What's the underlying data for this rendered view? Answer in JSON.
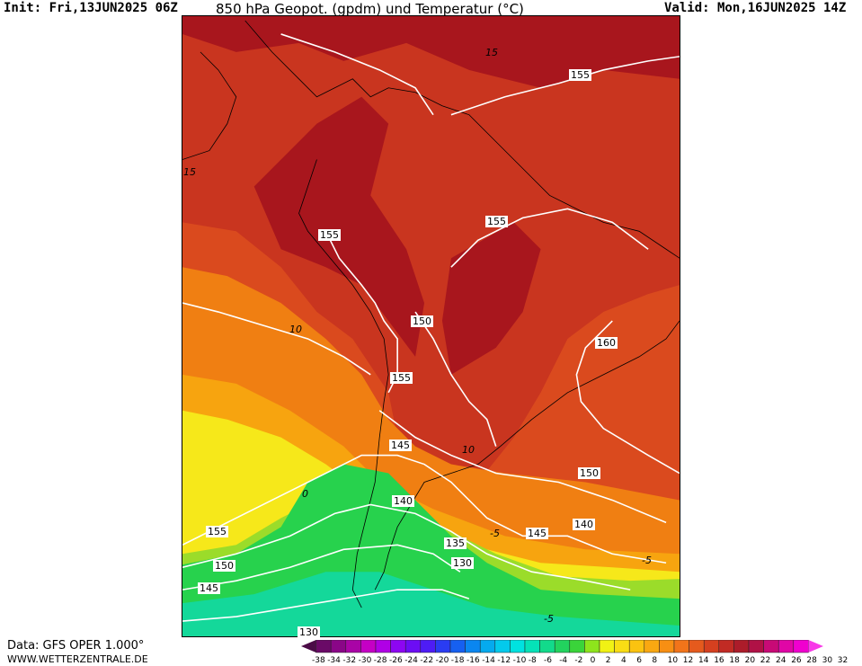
{
  "header": {
    "init": "Init: Fri,13JUN2025 06Z",
    "title": "850 hPa Geopot. (gpdm) und Temperatur (°C)",
    "valid": "Valid: Mon,16JUN2025 14Z"
  },
  "footer": {
    "data_source": "Data: GFS OPER 1.000°",
    "website": "WWW.WETTERZENTRALE.DE"
  },
  "colors": {
    "warm_dark": "#a8161d",
    "warm_red": "#c9351f",
    "warm_orange_red": "#da4a1e",
    "orange": "#f07f12",
    "light_orange": "#f7a40f",
    "yellow": "#f6e81a",
    "yellow_green": "#9bdc2a",
    "green": "#27d24d",
    "teal": "#14d89a",
    "contour": "#ffffff"
  },
  "geopotential_labels": [
    "155",
    "155",
    "155",
    "150",
    "155",
    "145",
    "140",
    "150",
    "145",
    "140",
    "135",
    "130",
    "155",
    "150",
    "145",
    "130",
    "160"
  ],
  "temperature_labels": [
    "15",
    "15",
    "10",
    "10",
    "-5",
    "-5",
    "0",
    "-5"
  ],
  "legend": {
    "ticks": [
      "-38",
      "-34",
      "-32",
      "-30",
      "-28",
      "-26",
      "-24",
      "-22",
      "-20",
      "-18",
      "-16",
      "-14",
      "-12",
      "-10",
      "-8",
      "-6",
      "-4",
      "-2",
      "0",
      "2",
      "4",
      "6",
      "8",
      "10",
      "12",
      "14",
      "16",
      "18",
      "20",
      "22",
      "24",
      "26",
      "28",
      "30",
      "32"
    ],
    "swatches": [
      "#4b0c47",
      "#6a0a67",
      "#8a0687",
      "#a904a6",
      "#c500c5",
      "#b000e6",
      "#8d06f2",
      "#6c0df4",
      "#4e1cf5",
      "#2a3cf2",
      "#1660f0",
      "#0a86f0",
      "#05aaee",
      "#03caec",
      "#00e2e0",
      "#05e2b8",
      "#12da8b",
      "#22d35e",
      "#3ad43a",
      "#8ee41c",
      "#f1f214",
      "#f9dd14",
      "#fbc310",
      "#f9a811",
      "#f78f13",
      "#f2741a",
      "#e55a1d",
      "#d5401f",
      "#c12b24",
      "#ac1c2a",
      "#b01146",
      "#c80a76",
      "#e006a6",
      "#f000cf",
      "#f83ae8"
    ]
  }
}
